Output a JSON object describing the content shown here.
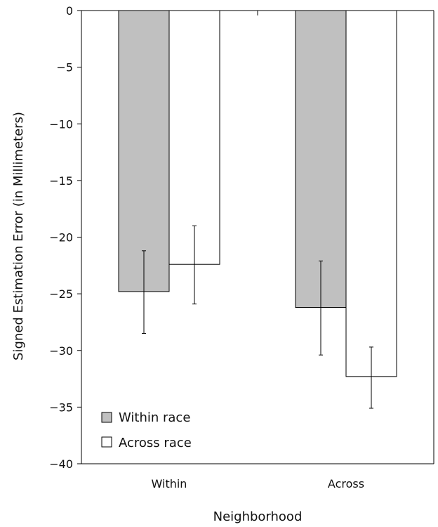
{
  "chart_data": {
    "type": "bar",
    "xlabel": "Neighborhood",
    "ylabel": "Signed Estimation Error (in Millimeters)",
    "categories": [
      "Within",
      "Across"
    ],
    "ylim": [
      -40,
      0
    ],
    "yticks": [
      0,
      -5,
      -10,
      -15,
      -20,
      -25,
      -30,
      -35,
      -40
    ],
    "ytick_labels": [
      "0",
      "−5",
      "−10",
      "−15",
      "−20",
      "−25",
      "−30",
      "−35",
      "−40"
    ],
    "series": [
      {
        "name": "Within race",
        "color": "#c0c0c0",
        "values": [
          -24.8,
          -26.2
        ],
        "error_low": [
          -28.5,
          -30.4
        ],
        "error_high": [
          -21.2,
          -22.1
        ]
      },
      {
        "name": "Across race",
        "color": "#ffffff",
        "values": [
          -22.4,
          -32.3
        ],
        "error_low": [
          -25.9,
          -35.1
        ],
        "error_high": [
          -19.0,
          -29.7
        ]
      }
    ],
    "legend_position": "bottom-left",
    "grid": false
  }
}
